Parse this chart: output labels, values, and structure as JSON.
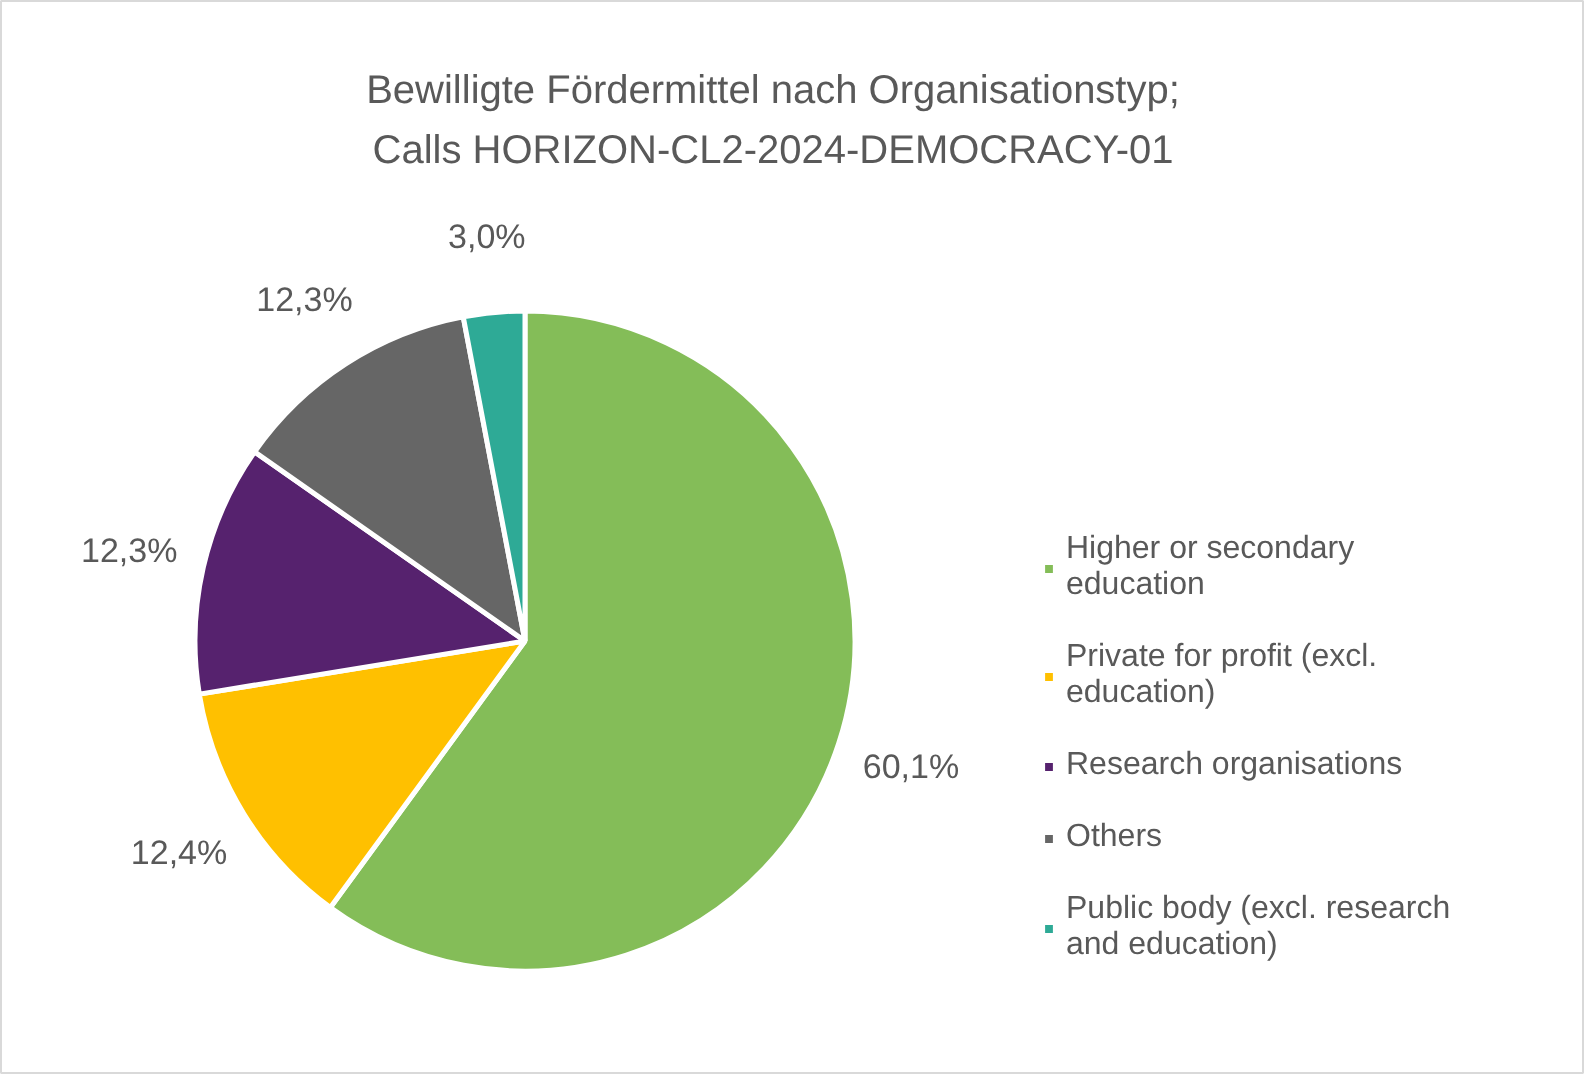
{
  "chart_data": {
    "type": "pie",
    "title": "Bewilligte Fördermittel nach Organisationstyp; Calls HORIZON-CL2-2024-DEMOCRACY-01",
    "categories": [
      "Higher or secondary education",
      "Private for profit (excl. education)",
      "Research organisations",
      "Others",
      "Public body (excl. research and education)"
    ],
    "values": [
      60.1,
      12.4,
      12.3,
      12.3,
      3.0
    ],
    "value_labels": [
      "60,1%",
      "12,4%",
      "12,3%",
      "12,3%",
      "3,0%"
    ],
    "colors": [
      "#84bd58",
      "#ffc000",
      "#56226e",
      "#666666",
      "#2eaa96"
    ],
    "legend": "right"
  }
}
